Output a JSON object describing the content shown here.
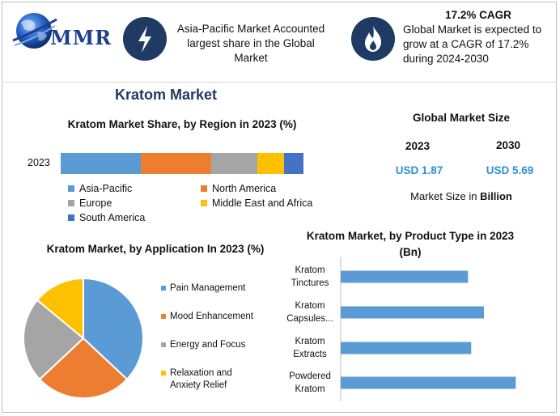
{
  "header": {
    "logo_text": "MMR",
    "highlight1": "Asia-Pacific Market Accounted largest share in the Global Market",
    "highlight2_title": "17.2% CAGR",
    "highlight2_text": "Global Market is expected to grow at a CAGR of 17.2% during 2024-2030"
  },
  "page_title": "Kratom Market",
  "global_size": {
    "title": "Global Market Size",
    "year1": "2023",
    "year2": "2030",
    "value1": "USD 1.87",
    "value2": "USD 5.69",
    "note_prefix": "Market Size in ",
    "note_unit": "Billion"
  },
  "colors": {
    "asia_pacific": "#5b9bd5",
    "north_america": "#ed7d31",
    "europe": "#a5a5a5",
    "mea": "#ffc000",
    "south_america": "#4472c4",
    "header_badge": "#1f3a63",
    "accent_blue": "#2e8fd6"
  },
  "chart_data": [
    {
      "type": "bar",
      "orientation": "horizontal-stacked",
      "title": "Kratom Market Share, by Region in 2023 (%)",
      "categories": [
        "2023"
      ],
      "series": [
        {
          "name": "Asia-Pacific",
          "values": [
            33
          ],
          "color": "#5b9bd5"
        },
        {
          "name": "North America",
          "values": [
            29
          ],
          "color": "#ed7d31"
        },
        {
          "name": "Europe",
          "values": [
            19
          ],
          "color": "#a5a5a5"
        },
        {
          "name": "Middle East and Africa",
          "values": [
            11
          ],
          "color": "#ffc000"
        },
        {
          "name": "South America",
          "values": [
            8
          ],
          "color": "#4472c4"
        }
      ],
      "legend_position": "bottom"
    },
    {
      "type": "pie",
      "title": "Kratom Market, by Application In 2023 (%)",
      "labels": [
        "Pain Management",
        "Mood Enhancement",
        "Energy and Focus",
        "Relaxation and Anxiety Relief"
      ],
      "legend_labels": [
        [
          "Pain Management"
        ],
        [
          "Mood Enhancement"
        ],
        [
          "Energy and Focus"
        ],
        [
          "Relaxation and",
          "Anxiety Relief"
        ]
      ],
      "values": [
        37,
        26,
        23,
        14
      ],
      "colors": [
        "#5b9bd5",
        "#ed7d31",
        "#a5a5a5",
        "#ffc000"
      ],
      "legend_position": "right"
    },
    {
      "type": "bar",
      "orientation": "horizontal",
      "title": "Kratom Market, by Product Type in 2023 (Bn)",
      "categories": [
        [
          "Kratom",
          "Tinctures"
        ],
        [
          "Kratom",
          "Capsules..."
        ],
        [
          "Kratom",
          "Extracts"
        ],
        [
          "Powdered",
          "Kratom"
        ]
      ],
      "values": [
        0.4,
        0.45,
        0.41,
        0.55
      ],
      "xlim": [
        0,
        0.6
      ],
      "grid": false,
      "color": "#5b9bd5"
    }
  ]
}
